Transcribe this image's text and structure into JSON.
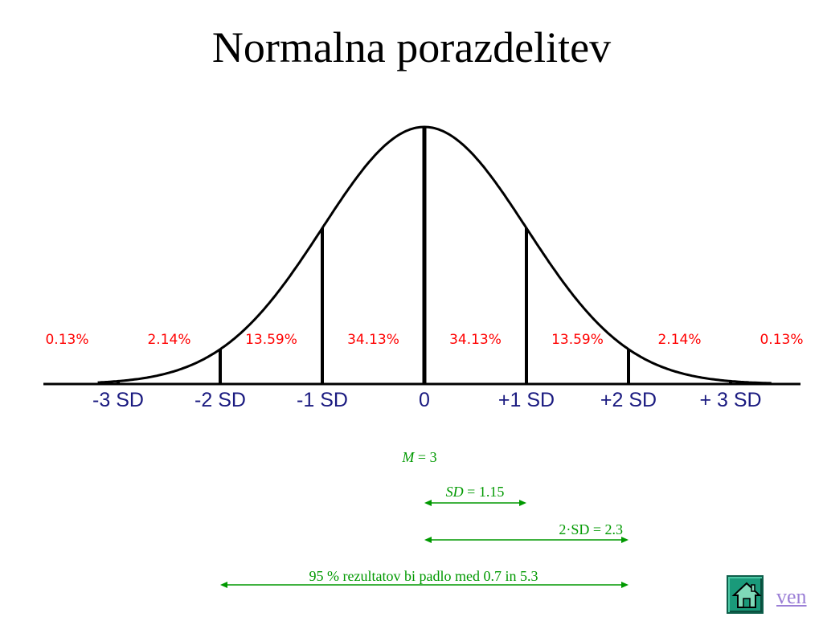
{
  "slide": {
    "title": "Normalna porazdelitev"
  },
  "chart_data": {
    "type": "area",
    "title": "Normalna porazdelitev",
    "xlabel": "",
    "ylabel": "",
    "x_ticks": [
      "-3 SD",
      "-2 SD",
      "-1 SD",
      "0",
      "+1 SD",
      "+2 SD",
      "+ 3 SD"
    ],
    "x_range": [
      -3.2,
      3.4
    ],
    "band_labels": [
      "0.13%",
      "2.14%",
      "13.59%",
      "34.13%",
      "34.13%",
      "13.59%",
      "2.14%",
      "0.13%"
    ],
    "band_label_x": [
      -3.5,
      -2.5,
      -1.5,
      -0.5,
      0.5,
      1.5,
      2.5,
      3.5
    ],
    "divider_positions": [
      -3,
      -2,
      -1,
      0,
      1,
      2,
      3
    ],
    "colors": {
      "curve": "#000000",
      "band_labels": "#ff0000",
      "annotations": "#009900"
    }
  },
  "annotations": {
    "mean": {
      "var": "M",
      "rest": " = 3"
    },
    "sd": {
      "var": "SD",
      "rest": " = 1.15",
      "from": 0,
      "to": 1
    },
    "two_sd": {
      "text": "2·SD = 2.3",
      "from": 0,
      "to": 2
    },
    "range95": {
      "text": "95 % rezultatov bi padlo med 0.7 in 5.3",
      "from": -2,
      "to": 2
    }
  },
  "nav": {
    "home_icon": "home-icon",
    "exit_label": "ven"
  }
}
